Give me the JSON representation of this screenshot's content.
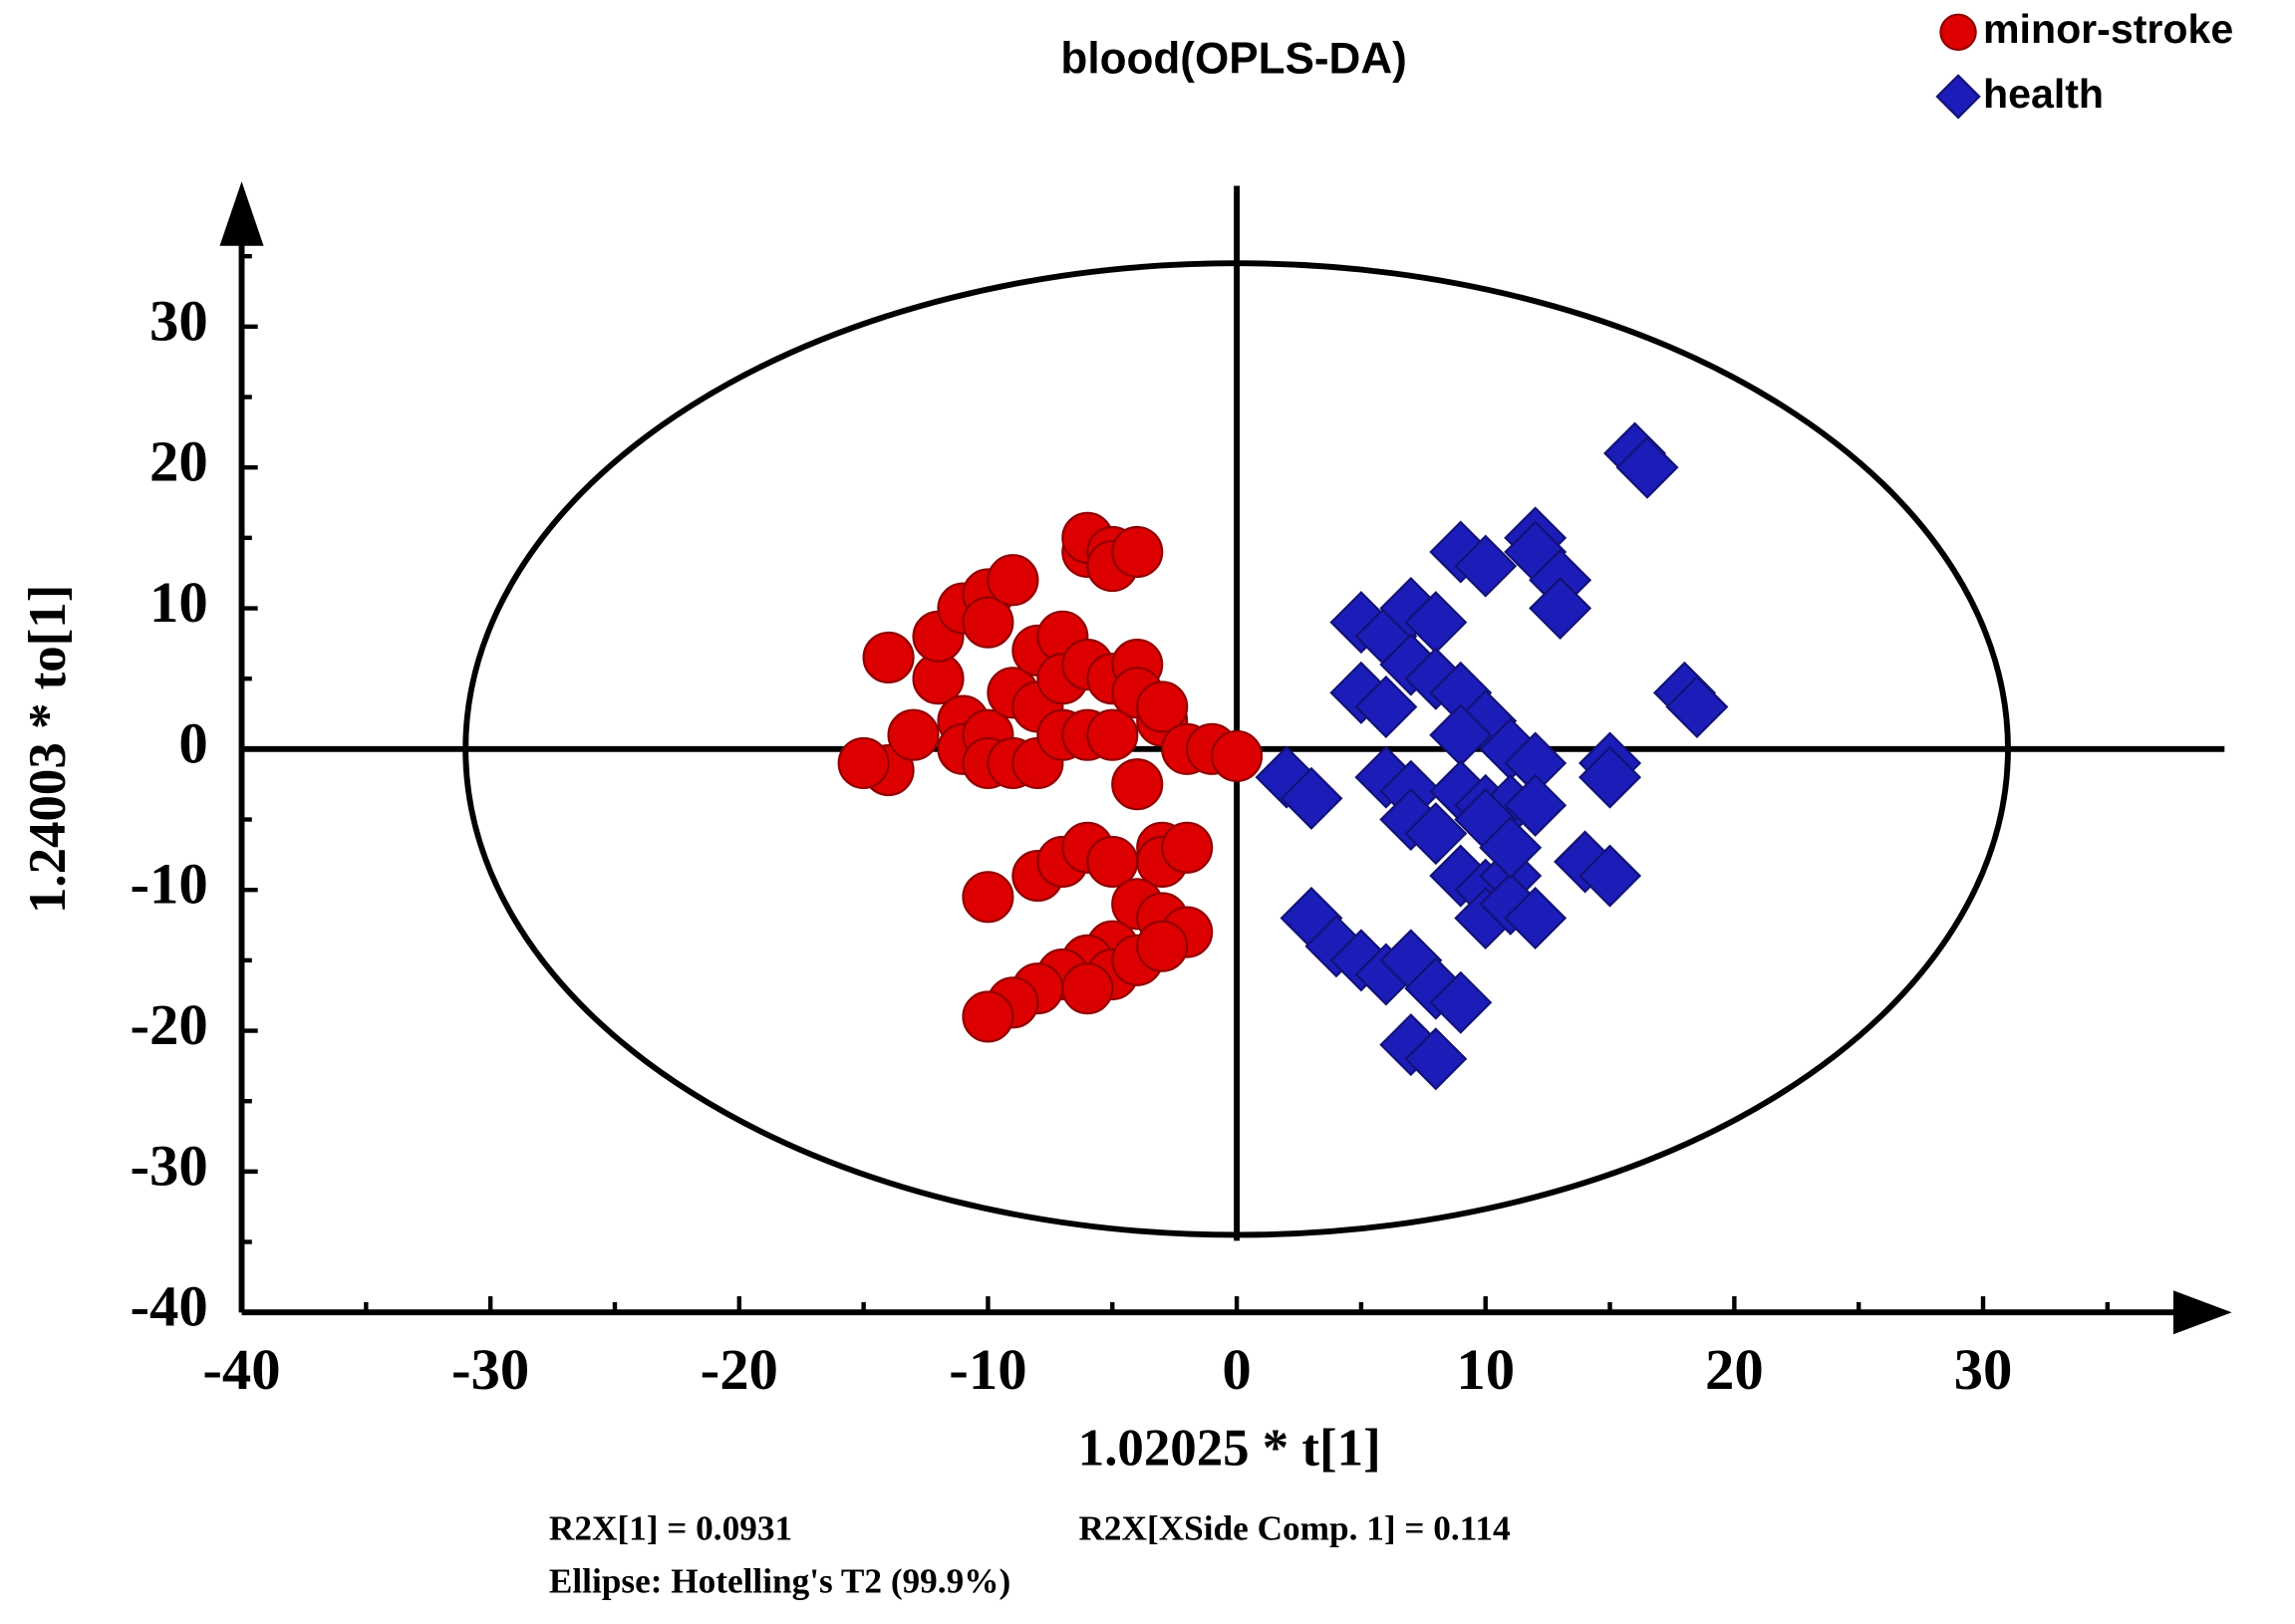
{
  "chart_data": {
    "type": "scatter",
    "title": "blood(OPLS-DA)",
    "x_label": "1.02025 * t[1]",
    "y_label": "1.24003 * to[1]",
    "annotations": [
      "R2X[1] = 0.0931",
      "R2X[XSide Comp. 1] = 0.114",
      "Ellipse: Hotelling's T2 (99.9%)"
    ],
    "ellipse": {
      "rx": 31,
      "ry": 34.5
    },
    "xlim": [
      -40,
      40
    ],
    "ylim": [
      -40,
      40
    ],
    "xticks": [
      -40,
      -30,
      -20,
      -10,
      0,
      10,
      20,
      30
    ],
    "yticks": [
      -40,
      -30,
      -20,
      -10,
      0,
      10,
      20,
      30
    ],
    "xminorticks": [
      -35,
      -25,
      -15,
      -5,
      5,
      15,
      25,
      35
    ],
    "yminorticks": [
      -35,
      -25,
      -15,
      -5,
      5,
      15,
      25,
      35
    ],
    "legend": "top-right",
    "series": [
      {
        "name": "minor-stroke",
        "color": "#dd0000",
        "marker": "circle",
        "x": [
          -14,
          -15,
          -14,
          -13,
          -12,
          -12,
          -11,
          -11,
          -11,
          -10,
          -10,
          -10,
          -10,
          -9,
          -9,
          -9,
          -8,
          -8,
          -8,
          -7,
          -7,
          -7,
          -6,
          -6,
          -5,
          -5,
          -4,
          -6,
          -5,
          -4,
          -4,
          -6,
          -5,
          -3,
          -3,
          -2,
          -1,
          0,
          -4,
          -10,
          -8,
          -7,
          -6,
          -5,
          -3,
          -3,
          -2,
          -4,
          -3,
          -2,
          -5,
          -6,
          -5,
          -7,
          -8,
          -9,
          -10,
          -6,
          -4,
          -3
        ],
        "values": [
          -1.5,
          -1,
          6.5,
          1,
          5,
          8,
          10,
          2,
          0,
          11,
          9,
          1,
          -1,
          12,
          4,
          -1,
          7,
          3,
          -1,
          8,
          5,
          1,
          14,
          15,
          14,
          13,
          14,
          6,
          5,
          6,
          4,
          1,
          1,
          2,
          3,
          0,
          0,
          -0.5,
          -2.5,
          -10.5,
          -9,
          -8,
          -7,
          -8,
          -7,
          -8,
          -7,
          -11,
          -12,
          -13,
          -14,
          -15,
          -16,
          -16,
          -17,
          -18,
          -19,
          -17,
          -15,
          -14
        ]
      },
      {
        "name": "health",
        "color": "#1c1cb8",
        "marker": "diamond",
        "x": [
          16,
          16.5,
          9,
          10,
          12,
          12,
          13,
          13,
          5,
          6,
          7,
          8,
          7,
          8,
          9,
          5,
          6,
          10,
          11,
          12,
          9,
          15,
          15,
          18,
          18.5,
          2,
          3,
          6,
          7,
          7,
          8,
          9,
          10,
          11,
          12,
          9,
          10,
          11,
          10,
          11,
          12,
          14,
          15,
          3,
          4,
          5,
          6,
          7,
          8,
          9,
          7,
          8,
          10,
          11
        ],
        "values": [
          21,
          20,
          14,
          13,
          15,
          14,
          12,
          10,
          9,
          8,
          10,
          9,
          6,
          5,
          4,
          4,
          3,
          2,
          0,
          -1,
          1,
          -1,
          -2,
          4,
          3,
          -2,
          -3.5,
          -2,
          -3,
          -5,
          -6,
          -3,
          -4,
          -4,
          -4,
          -9,
          -10,
          -9,
          -12,
          -11,
          -12,
          -8,
          -9,
          -12,
          -14,
          -15,
          -16,
          -15,
          -17,
          -18,
          -21,
          -22,
          -5,
          -7
        ]
      }
    ]
  }
}
